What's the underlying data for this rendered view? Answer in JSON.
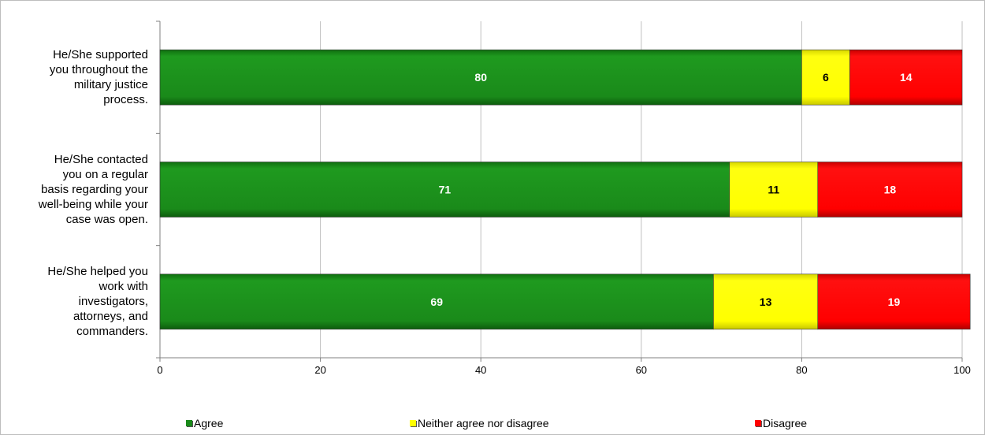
{
  "chart_data": {
    "type": "bar",
    "orientation": "horizontal",
    "stacked": true,
    "categories": [
      "He/She supported you throughout the military justice process.",
      "He/She contacted you on a regular basis regarding your well-being while your case was open.",
      "He/She helped you work with investigators, attorneys, and commanders."
    ],
    "category_lines": [
      [
        "He/She supported",
        "you throughout the",
        "military justice",
        "process."
      ],
      [
        "He/She contacted",
        "you on a regular",
        "basis regarding your",
        "well-being while your",
        "case was open."
      ],
      [
        "He/She helped you",
        "work with",
        "investigators,",
        "attorneys, and",
        "commanders."
      ]
    ],
    "series": [
      {
        "name": "Agree",
        "values": [
          80,
          71,
          69
        ],
        "color": "#1a8a1a"
      },
      {
        "name": "Neither agree nor disagree",
        "values": [
          6,
          11,
          13
        ],
        "color": "#ffff00"
      },
      {
        "name": "Disagree",
        "values": [
          14,
          18,
          19
        ],
        "color": "#ff0000"
      }
    ],
    "label_colors": [
      "#ffffff",
      "#000000",
      "#ffffff"
    ],
    "xlim": [
      0,
      100
    ],
    "xticks": [
      0,
      20,
      40,
      60,
      80,
      100
    ],
    "grid": true,
    "legend_position": "bottom",
    "title": "",
    "xlabel": "",
    "ylabel": ""
  }
}
